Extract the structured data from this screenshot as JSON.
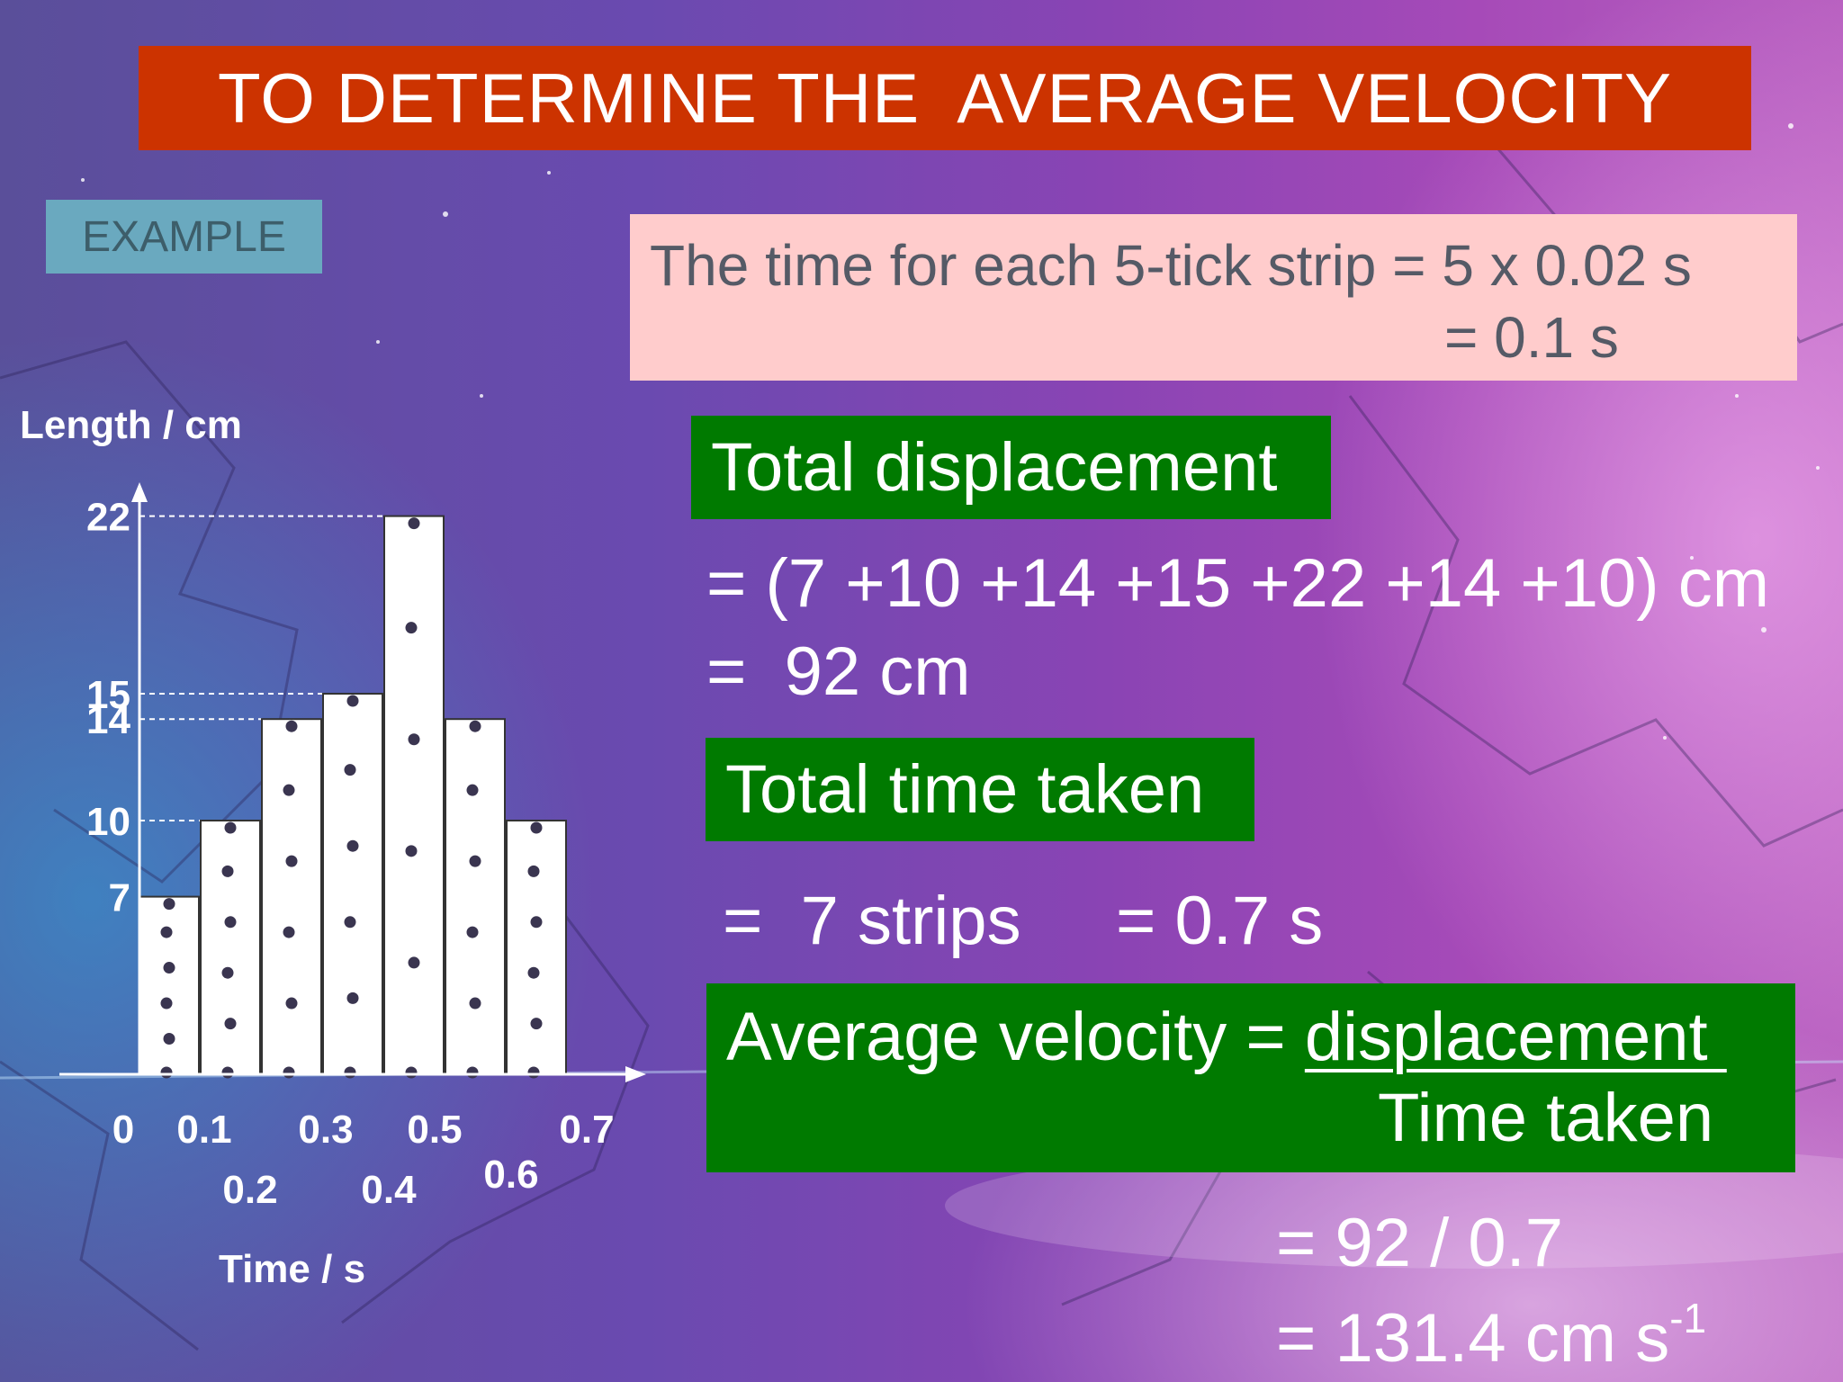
{
  "title": "TO DETERMINE THE  AVERAGE VELOCITY",
  "example_label": "EXAMPLE",
  "strip_time": {
    "line1": "The time for each 5-tick strip = 5 x 0.02 s",
    "line2": "= 0.1 s"
  },
  "displacement": {
    "label": "Total displacement",
    "eq1": "= (7 +10 +14 +15 +22 +14 +10) cm",
    "eq2": "=  92 cm"
  },
  "time_taken": {
    "label": "Total time taken",
    "eq1": "=  7 strips",
    "eq2": "= 0.7 s"
  },
  "average_velocity": {
    "line1_prefix": "Average velocity = ",
    "numerator": "displacement ",
    "denominator": "Time taken",
    "eq1": "= 92 / 0.7",
    "eq2_base": "= 131.4 cm s",
    "eq2_sup": "-1"
  },
  "colors": {
    "title_bg": "#cc3300",
    "label_bg": "#007a00",
    "strip_box_bg": "#ffcccc",
    "example_bg": "#6aa9bf"
  },
  "chart_data": {
    "type": "bar",
    "ylabel": "Length / cm",
    "xlabel": "Time / s",
    "strips": [
      7,
      10,
      14,
      15,
      22,
      14,
      10
    ],
    "y_tick_labels": [
      "22",
      "15",
      "14",
      "10",
      "7"
    ],
    "y_tick_values": [
      22,
      15,
      14,
      10,
      7
    ],
    "dashed_levels": [
      22,
      15,
      14,
      10
    ],
    "x_ticks": [
      {
        "label": "0",
        "value": 0,
        "row": 0
      },
      {
        "label": "0.1",
        "value": 0.1,
        "row": 0
      },
      {
        "label": "0.2",
        "value": 0.2,
        "row": 1
      },
      {
        "label": "0.3",
        "value": 0.3,
        "row": 0
      },
      {
        "label": "0.4",
        "value": 0.4,
        "row": 1
      },
      {
        "label": "0.5",
        "value": 0.5,
        "row": 0
      },
      {
        "label": "0.6",
        "value": 0.6,
        "row": 1
      },
      {
        "label": "0.7",
        "value": 0.7,
        "row": 0
      }
    ],
    "ticks_per_strip": 5,
    "ylim": [
      0,
      22
    ],
    "xlim": [
      0,
      0.7
    ]
  }
}
